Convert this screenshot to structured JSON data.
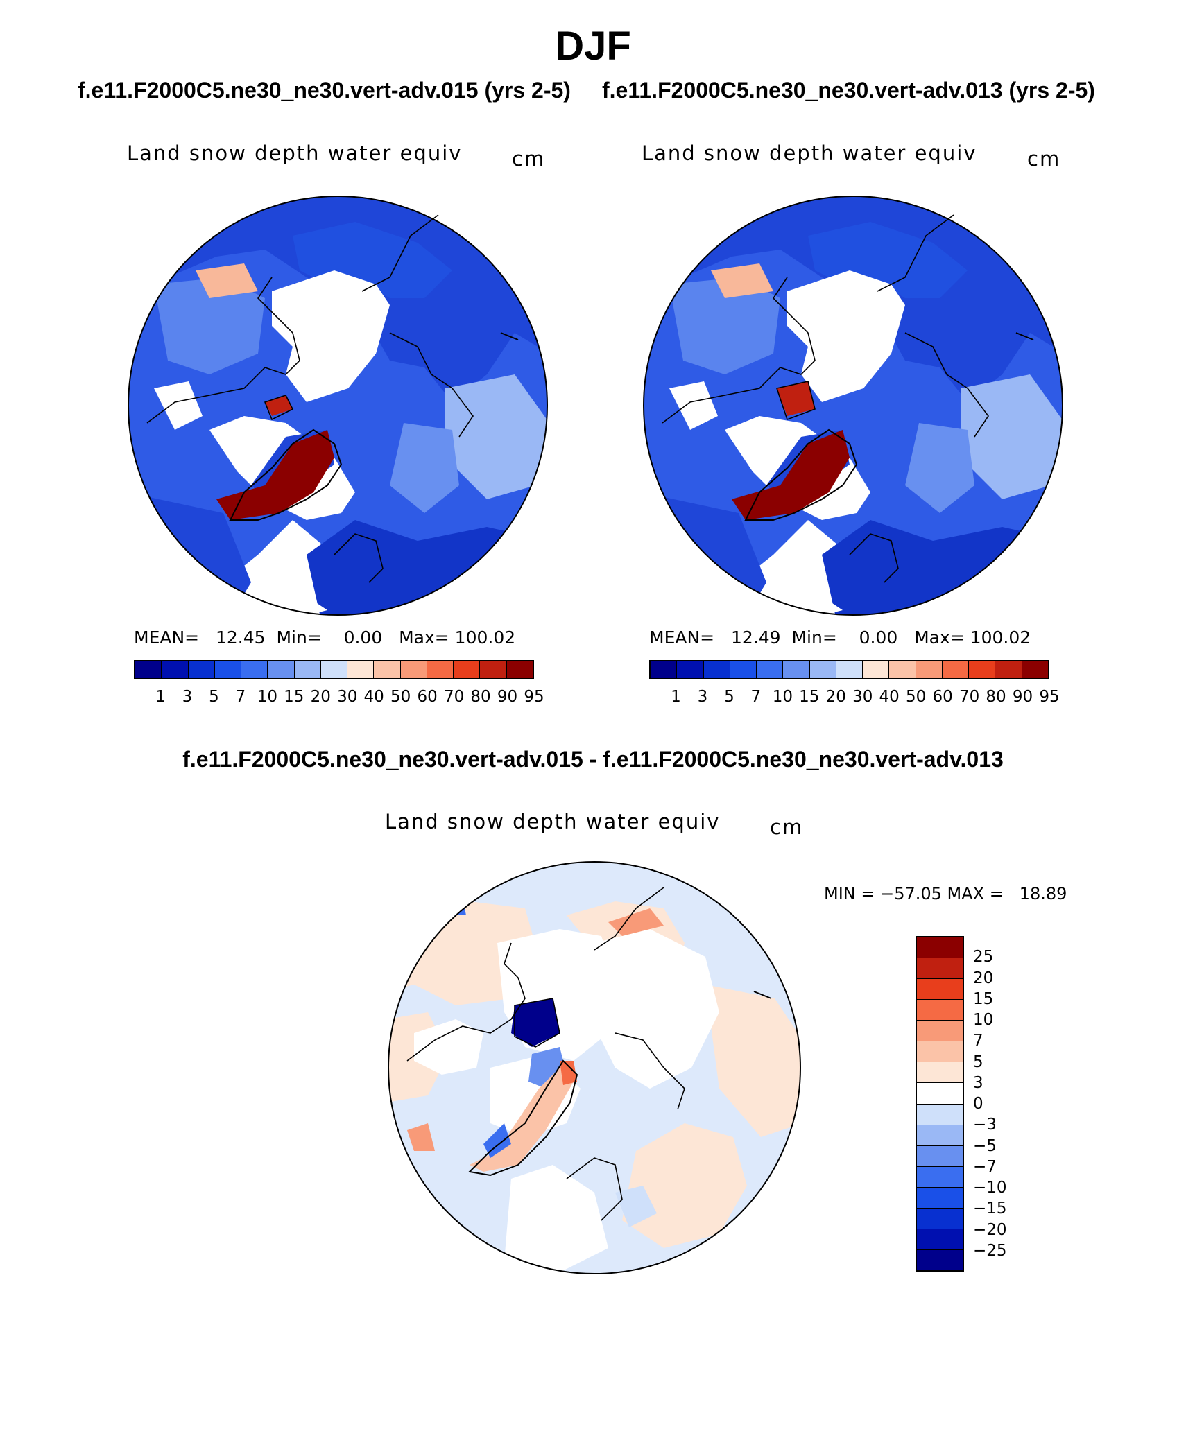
{
  "figure": {
    "season": "DJF",
    "subtitle_left": "f.e11.F2000C5.ne30_ne30.vert-adv.015 (yrs 2-5)",
    "subtitle_right": "f.e11.F2000C5.ne30_ne30.vert-adv.013 (yrs 2-5)",
    "diff_title": "f.e11.F2000C5.ne30_ne30.vert-adv.015 - f.e11.F2000C5.ne30_ne30.vert-adv.013"
  },
  "panels": [
    {
      "variable": "Land snow depth water equiv",
      "units": "cm",
      "mean_label": "MEAN=",
      "mean": "12.45",
      "min_label": "Min=",
      "min": "0.00",
      "max_label": "Max=",
      "max": "100.02"
    },
    {
      "variable": "Land snow depth water equiv",
      "units": "cm",
      "mean_label": "MEAN=",
      "mean": "12.49",
      "min_label": "Min=",
      "min": "0.00",
      "max_label": "Max=",
      "max": "100.02"
    }
  ],
  "diff_panel": {
    "variable": "Land snow depth water equiv",
    "units": "cm",
    "min_max_text": "MIN = −57.05 MAX =   18.89"
  },
  "colorbar_main": {
    "labels": [
      "1",
      "3",
      "5",
      "7",
      "10",
      "15",
      "20",
      "30",
      "40",
      "50",
      "60",
      "70",
      "80",
      "90",
      "95"
    ],
    "colors": [
      "#00008b",
      "#0010b0",
      "#0830d0",
      "#1a50e8",
      "#3a6ef0",
      "#6890f0",
      "#9ab8f5",
      "#cfe0fa",
      "#fde6d6",
      "#fbc3a8",
      "#f89a78",
      "#f56a44",
      "#e83e1c",
      "#c02010",
      "#8b0000"
    ]
  },
  "colorbar_diff": {
    "labels": [
      "25",
      "20",
      "15",
      "10",
      "7",
      "5",
      "3",
      "0",
      "−3",
      "−5",
      "−7",
      "−10",
      "−15",
      "−20",
      "−25"
    ],
    "colors": [
      "#8b0000",
      "#c02010",
      "#e83e1c",
      "#f56a44",
      "#f89a78",
      "#fbc3a8",
      "#fde6d6",
      "#ffffff",
      "#cfe0fa",
      "#9ab8f5",
      "#6890f0",
      "#3a6ef0",
      "#1a50e8",
      "#0830d0",
      "#0010b0",
      "#00008b"
    ]
  },
  "map_colors": {
    "land_snow_deep": "#1a3fd0",
    "land_snow_mid": "#3a6ef0",
    "land_snow_light": "#9ab8f5",
    "greenland": "#8b0000",
    "greenland_edge": "#e83e1c",
    "diff_pos": "#fde6d6",
    "diff_neg": "#cfe0fa"
  }
}
